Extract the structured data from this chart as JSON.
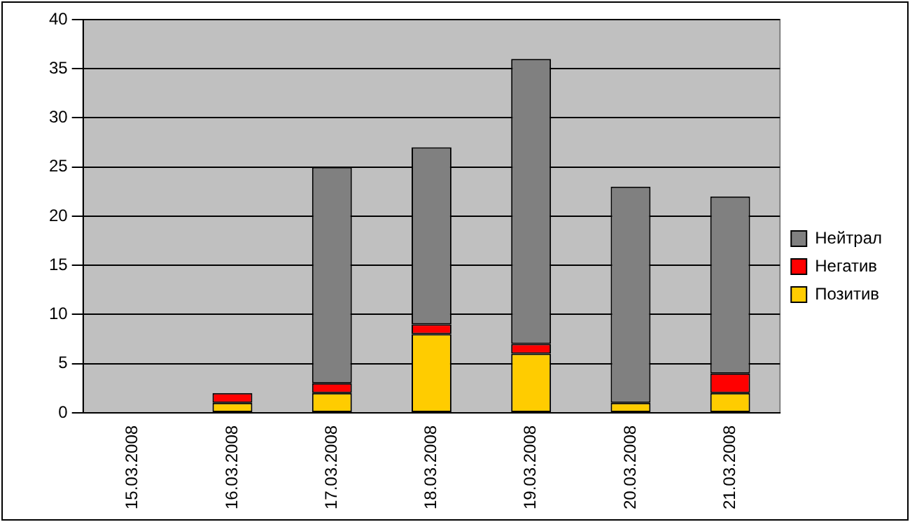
{
  "chart_data": {
    "type": "bar",
    "stacked": true,
    "categories": [
      "15.03.2008",
      "16.03.2008",
      "17.03.2008",
      "18.03.2008",
      "19.03.2008",
      "20.03.2008",
      "21.03.2008"
    ],
    "series": [
      {
        "name": "Позитив",
        "color": "#ffcc00",
        "values": [
          0,
          1,
          2,
          8,
          6,
          1,
          2
        ]
      },
      {
        "name": "Негатив",
        "color": "#ff0000",
        "values": [
          0,
          1,
          1,
          1,
          1,
          0,
          2
        ]
      },
      {
        "name": "Нейтрал",
        "color": "#808080",
        "values": [
          0,
          0,
          22,
          18,
          29,
          22,
          18
        ]
      }
    ],
    "ylim": [
      0,
      40
    ],
    "yticks": [
      0,
      5,
      10,
      15,
      20,
      25,
      30,
      35,
      40
    ],
    "grid": "y",
    "legend": "right"
  }
}
